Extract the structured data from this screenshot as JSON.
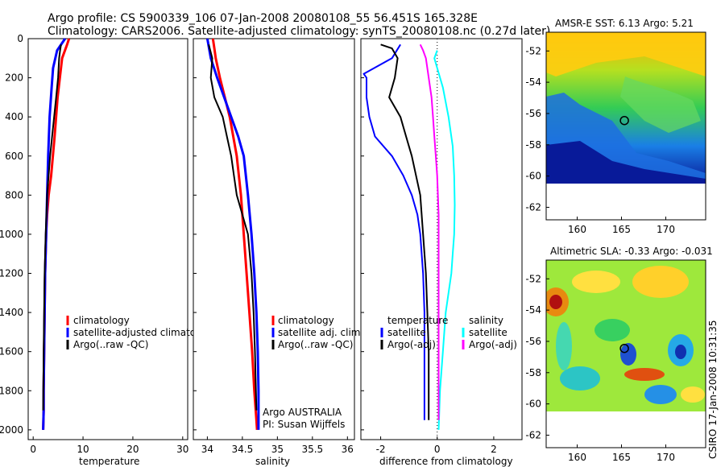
{
  "header": {
    "line1": "Argo profile: CS 5900339_106 07-Jan-2008 20080108_55 56.451S 165.328E",
    "line2": "Climatology: CARS2006. Satellite-adjusted climatology: synTS_20080108.nc (0.27d later)"
  },
  "colors": {
    "climatology": "#ff0000",
    "satellite": "#0000ff",
    "argo": "#000000",
    "argo_salinity_diff": "#ff00ff",
    "satellite_salinity_diff": "#00ffff"
  },
  "chart_data": [
    {
      "type": "line",
      "id": "temperature",
      "xlabel": "temperature",
      "xlim": [
        -1,
        31
      ],
      "ylim": [
        2050,
        0
      ],
      "xticks": [
        0,
        10,
        20,
        30
      ],
      "yticks": [
        0,
        200,
        400,
        600,
        800,
        1000,
        1200,
        1400,
        1600,
        1800,
        2000
      ],
      "legend": [
        "climatology",
        "satellite-adjusted climatology",
        "Argo(..raw -QC)"
      ],
      "series": [
        {
          "name": "climatology",
          "color": "#ff0000",
          "width": 3,
          "x": [
            7.2,
            6.8,
            5.8,
            4.9,
            4.3,
            3.6,
            3.1,
            2.8,
            2.6,
            2.4,
            2.3,
            2.2,
            2.1,
            2.1,
            2.0
          ],
          "y": [
            0,
            30,
            100,
            300,
            500,
            700,
            800,
            900,
            1000,
            1200,
            1400,
            1600,
            1800,
            1900,
            2000
          ]
        },
        {
          "name": "satellite-adjusted climatology",
          "color": "#0000ff",
          "width": 3,
          "x": [
            6.4,
            4.8,
            4.0,
            3.7,
            3.3,
            3.0,
            2.8,
            2.6,
            2.4,
            2.3,
            2.2,
            2.1,
            2.1,
            2.0
          ],
          "y": [
            0,
            60,
            150,
            250,
            400,
            600,
            800,
            1000,
            1200,
            1400,
            1600,
            1800,
            1900,
            2000
          ]
        },
        {
          "name": "Argo(..raw -QC)",
          "color": "#000000",
          "width": 2,
          "x": [
            5.6,
            5.4,
            5.2,
            5.0,
            4.6,
            4.2,
            3.4,
            2.8,
            2.5,
            2.3,
            2.2,
            2.1,
            2.0
          ],
          "y": [
            30,
            60,
            100,
            200,
            300,
            400,
            600,
            800,
            1000,
            1200,
            1400,
            1600,
            1900
          ]
        }
      ]
    },
    {
      "type": "line",
      "id": "salinity",
      "xlabel": "salinity",
      "xlim": [
        33.8,
        36.1
      ],
      "ylim": [
        2050,
        0
      ],
      "xticks": [
        34,
        34.5,
        35,
        35.5,
        36
      ],
      "xtick_labels": [
        "34",
        "34.5",
        "35",
        "35.5",
        "36"
      ],
      "legend": [
        "climatology",
        "satellite adj. clim.",
        "Argo(..raw -QC)"
      ],
      "annotation": [
        "Argo AUSTRALIA",
        "PI: Susan Wijffels"
      ],
      "series": [
        {
          "name": "climatology",
          "color": "#ff0000",
          "width": 3,
          "x": [
            34.08,
            34.1,
            34.12,
            34.18,
            34.32,
            34.42,
            34.48,
            34.52,
            34.56,
            34.6,
            34.64,
            34.67,
            34.7,
            34.71
          ],
          "y": [
            0,
            50,
            100,
            200,
            400,
            600,
            800,
            1000,
            1200,
            1400,
            1600,
            1800,
            1950,
            2000
          ]
        },
        {
          "name": "satellite adj. clim.",
          "color": "#0000ff",
          "width": 3,
          "x": [
            34.0,
            34.05,
            34.14,
            34.24,
            34.34,
            34.44,
            34.52,
            34.58,
            34.63,
            34.67,
            34.7,
            34.72,
            34.73,
            34.73
          ],
          "y": [
            0,
            100,
            200,
            300,
            400,
            500,
            600,
            800,
            1000,
            1200,
            1400,
            1600,
            1800,
            2000
          ]
        },
        {
          "name": "Argo(..raw -QC)",
          "color": "#000000",
          "width": 2,
          "x": [
            34.02,
            34.07,
            34.05,
            34.1,
            34.22,
            34.28,
            34.34,
            34.38,
            34.42,
            34.5,
            34.58,
            34.63,
            34.66,
            34.68,
            34.7
          ],
          "y": [
            30,
            100,
            200,
            300,
            400,
            500,
            600,
            700,
            800,
            900,
            1000,
            1200,
            1400,
            1600,
            1900
          ]
        }
      ]
    },
    {
      "type": "line",
      "id": "difference",
      "xlabel": "difference from climatology",
      "xlim": [
        -2.7,
        3.0
      ],
      "ylim": [
        2050,
        0
      ],
      "xticks": [
        -2,
        0,
        2
      ],
      "xtick_labels": [
        "-2",
        "0",
        "2"
      ],
      "zero_line": true,
      "legend_left_title": "temperature",
      "legend_left": [
        "satellite",
        "Argo(-adj)"
      ],
      "legend_right_title": "salinity",
      "legend_right": [
        "satellite",
        "Argo(-adj)"
      ],
      "series": [
        {
          "name": "temperature satellite",
          "color": "#0000ff",
          "width": 2,
          "x": [
            -1.3,
            -1.6,
            -2.6,
            -2.5,
            -2.5,
            -2.4,
            -2.2,
            -1.6,
            -1.2,
            -0.9,
            -0.7,
            -0.6,
            -0.5,
            -0.45,
            -0.45,
            -0.45
          ],
          "y": [
            30,
            100,
            180,
            200,
            300,
            400,
            500,
            600,
            700,
            800,
            900,
            1000,
            1200,
            1400,
            1700,
            1950
          ]
        },
        {
          "name": "temperature Argo(-adj)",
          "color": "#000000",
          "width": 2,
          "x": [
            -2.0,
            -1.6,
            -1.4,
            -1.5,
            -1.7,
            -1.3,
            -1.1,
            -0.9,
            -0.6,
            -0.5,
            -0.4,
            -0.35,
            -0.3,
            -0.3,
            -0.3
          ],
          "y": [
            30,
            50,
            100,
            200,
            300,
            400,
            500,
            600,
            800,
            1000,
            1200,
            1400,
            1600,
            1800,
            1950
          ]
        },
        {
          "name": "salinity satellite",
          "color": "#00ffff",
          "width": 2,
          "x": [
            0.0,
            -0.1,
            0.0,
            0.2,
            0.4,
            0.55,
            0.6,
            0.62,
            0.6,
            0.55,
            0.5,
            0.4,
            0.3,
            0.2,
            0.1,
            0.05
          ],
          "y": [
            60,
            100,
            150,
            250,
            400,
            550,
            700,
            850,
            1000,
            1100,
            1200,
            1300,
            1400,
            1600,
            1800,
            2000
          ]
        },
        {
          "name": "salinity Argo(-adj)",
          "color": "#ff00ff",
          "width": 2,
          "x": [
            -0.6,
            -0.5,
            -0.4,
            -0.3,
            -0.2,
            -0.15,
            -0.1,
            -0.05,
            0.0,
            0.05,
            0.05,
            0.05,
            0.05,
            0.05,
            0.05
          ],
          "y": [
            30,
            60,
            100,
            200,
            300,
            400,
            500,
            600,
            700,
            900,
            1100,
            1300,
            1500,
            1700,
            1950
          ]
        }
      ]
    },
    {
      "type": "heatmap",
      "id": "sst_map",
      "title": "AMSR-E SST: 6.13 Argo: 5.21",
      "xlim": [
        156.5,
        174.5
      ],
      "ylim": [
        -62.8,
        -50.8
      ],
      "xticks": [
        160,
        165,
        170
      ],
      "yticks": [
        -52,
        -54,
        -56,
        -58,
        -60,
        -62
      ],
      "data_lat_min": -60,
      "marker": {
        "lon": 165.328,
        "lat": -56.451
      },
      "colormap": "jet"
    },
    {
      "type": "heatmap",
      "id": "sla_map",
      "title": "Altimetric SLA: -0.33 Argo: -0.031",
      "xlim": [
        156.5,
        174.5
      ],
      "ylim": [
        -62.8,
        -50.8
      ],
      "xticks": [
        160,
        165,
        170
      ],
      "yticks": [
        -52,
        -54,
        -56,
        -58,
        -60,
        -62
      ],
      "data_lat_min": -60,
      "marker": {
        "lon": 165.328,
        "lat": -56.451
      },
      "colormap": "jet"
    }
  ],
  "side_label": "CSIRO 17-Jan-2008 10:31:35"
}
